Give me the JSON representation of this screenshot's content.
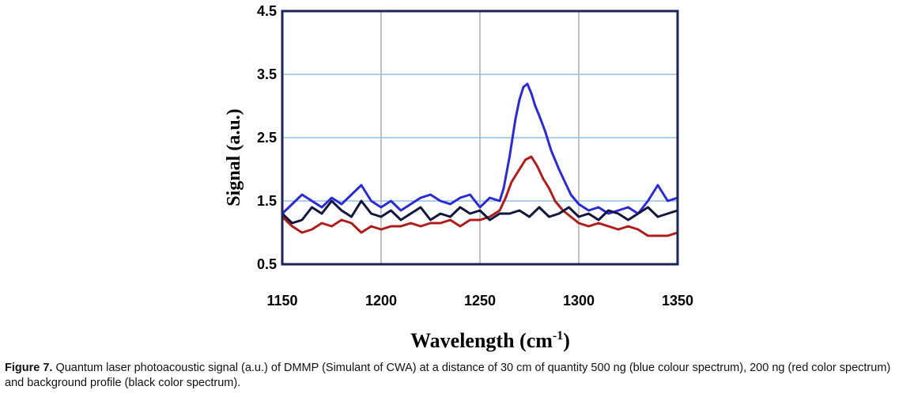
{
  "chart_data": {
    "type": "line",
    "xlabel": "Wavelength (cm",
    "xlabel_superscript": "-1",
    "xlabel_suffix": ")",
    "ylabel": "Signal (a.u.)",
    "xlim": [
      1150,
      1350
    ],
    "ylim": [
      0.5,
      4.5
    ],
    "x_ticks": [
      1150,
      1200,
      1250,
      1300,
      1350
    ],
    "x_tick_labels": [
      "1150",
      "1200",
      "1250",
      "1300",
      "1350"
    ],
    "y_ticks": [
      0.5,
      1.5,
      2.5,
      3.5,
      4.5
    ],
    "y_tick_labels": [
      "0.5",
      "1.5",
      "2.5",
      "3.5",
      "4.5"
    ],
    "grid": "vertical at 1200/1250/1300 (grey), horizontal at 1.5/2.5/3.5 (light blue)",
    "legend": "none",
    "series": [
      {
        "color": "#2b2bd6",
        "x": [
          1150,
          1155,
          1160,
          1165,
          1170,
          1175,
          1180,
          1185,
          1190,
          1195,
          1200,
          1205,
          1210,
          1215,
          1220,
          1225,
          1230,
          1235,
          1240,
          1245,
          1250,
          1255,
          1260,
          1262,
          1265,
          1268,
          1270,
          1272,
          1274,
          1276,
          1278,
          1280,
          1283,
          1286,
          1290,
          1293,
          1296,
          1300,
          1305,
          1310,
          1315,
          1320,
          1325,
          1330,
          1335,
          1340,
          1345,
          1350
        ],
        "y": [
          1.3,
          1.45,
          1.6,
          1.5,
          1.4,
          1.55,
          1.45,
          1.6,
          1.75,
          1.5,
          1.4,
          1.5,
          1.35,
          1.45,
          1.55,
          1.6,
          1.5,
          1.45,
          1.55,
          1.6,
          1.4,
          1.55,
          1.5,
          1.7,
          2.2,
          2.8,
          3.1,
          3.3,
          3.35,
          3.2,
          3.0,
          2.85,
          2.6,
          2.3,
          2.0,
          1.8,
          1.6,
          1.45,
          1.35,
          1.4,
          1.3,
          1.35,
          1.4,
          1.3,
          1.5,
          1.75,
          1.5,
          1.55
        ]
      },
      {
        "color": "#b01c1c",
        "x": [
          1150,
          1155,
          1160,
          1165,
          1170,
          1175,
          1180,
          1185,
          1190,
          1195,
          1200,
          1205,
          1210,
          1215,
          1220,
          1225,
          1230,
          1235,
          1240,
          1245,
          1250,
          1255,
          1260,
          1263,
          1266,
          1270,
          1273,
          1276,
          1279,
          1282,
          1285,
          1288,
          1292,
          1296,
          1300,
          1305,
          1310,
          1315,
          1320,
          1325,
          1330,
          1335,
          1340,
          1345,
          1350
        ],
        "y": [
          1.25,
          1.1,
          1.0,
          1.05,
          1.15,
          1.1,
          1.2,
          1.15,
          1.0,
          1.1,
          1.05,
          1.1,
          1.1,
          1.15,
          1.1,
          1.15,
          1.15,
          1.2,
          1.1,
          1.2,
          1.2,
          1.25,
          1.35,
          1.55,
          1.8,
          2.0,
          2.15,
          2.2,
          2.05,
          1.85,
          1.7,
          1.5,
          1.35,
          1.25,
          1.15,
          1.1,
          1.15,
          1.1,
          1.05,
          1.1,
          1.05,
          0.95,
          0.95,
          0.95,
          1.0
        ]
      },
      {
        "color": "#13163f",
        "x": [
          1150,
          1155,
          1160,
          1165,
          1170,
          1175,
          1180,
          1185,
          1190,
          1195,
          1200,
          1205,
          1210,
          1215,
          1220,
          1225,
          1230,
          1235,
          1240,
          1245,
          1250,
          1255,
          1260,
          1265,
          1270,
          1275,
          1280,
          1285,
          1290,
          1295,
          1300,
          1305,
          1310,
          1315,
          1320,
          1325,
          1330,
          1335,
          1340,
          1345,
          1350
        ],
        "y": [
          1.3,
          1.15,
          1.2,
          1.4,
          1.3,
          1.5,
          1.35,
          1.25,
          1.5,
          1.3,
          1.25,
          1.35,
          1.2,
          1.3,
          1.4,
          1.2,
          1.3,
          1.25,
          1.4,
          1.3,
          1.35,
          1.2,
          1.3,
          1.3,
          1.35,
          1.25,
          1.4,
          1.25,
          1.3,
          1.4,
          1.25,
          1.3,
          1.2,
          1.35,
          1.3,
          1.2,
          1.3,
          1.4,
          1.25,
          1.3,
          1.35
        ]
      }
    ]
  },
  "caption": {
    "label": "Figure 7.",
    "text": " Quantum laser photoacoustic signal (a.u.) of DMMP (Simulant of CWA) at a distance of 30 cm of quantity 500 ng (blue colour spectrum), 200 ng (red color spectrum) and background profile (black color spectrum)."
  }
}
